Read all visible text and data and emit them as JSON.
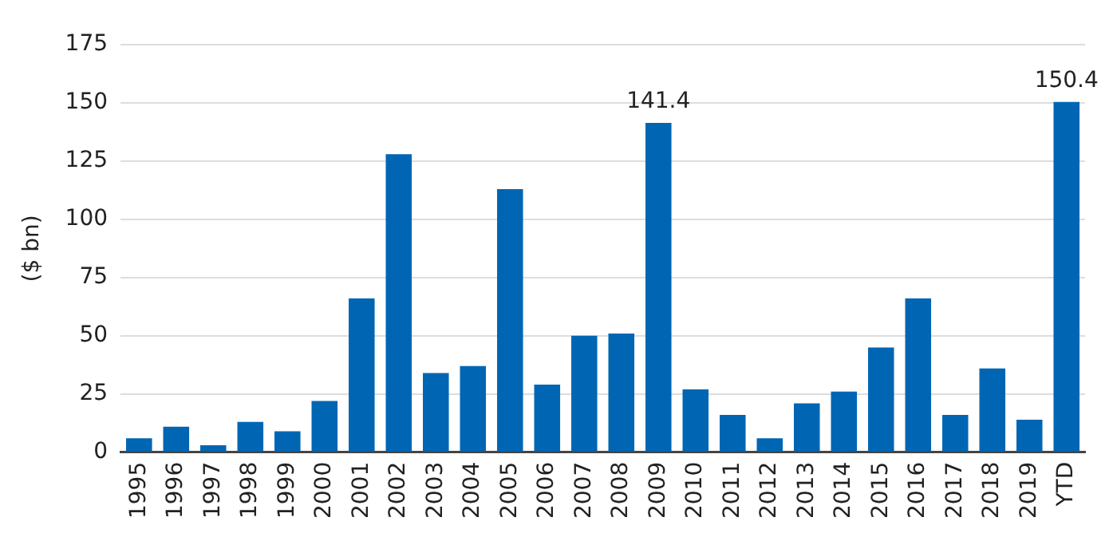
{
  "chart_data": {
    "type": "bar",
    "ylabel": "($ bn)",
    "categories": [
      "1995",
      "1996",
      "1997",
      "1998",
      "1999",
      "2000",
      "2001",
      "2002",
      "2003",
      "2004",
      "2005",
      "2006",
      "2007",
      "2008",
      "2009",
      "2010",
      "2011",
      "2012",
      "2013",
      "2014",
      "2015",
      "2016",
      "2017",
      "2018",
      "2019",
      "YTD"
    ],
    "values": [
      6,
      11,
      3,
      13,
      9,
      22,
      66,
      128,
      34,
      37,
      113,
      29,
      50,
      51,
      141.4,
      27,
      16,
      6,
      21,
      26,
      45,
      66,
      16,
      36,
      14,
      150.4
    ],
    "value_labels": [
      null,
      null,
      null,
      null,
      null,
      null,
      null,
      null,
      null,
      null,
      null,
      null,
      null,
      null,
      "141.4",
      null,
      null,
      null,
      null,
      null,
      null,
      null,
      null,
      null,
      null,
      "150.4"
    ],
    "color": "#0066b3",
    "ylim": [
      0,
      175
    ],
    "yticks": [
      0,
      25,
      50,
      75,
      100,
      125,
      150,
      175
    ],
    "grid": "y",
    "legend": false
  }
}
